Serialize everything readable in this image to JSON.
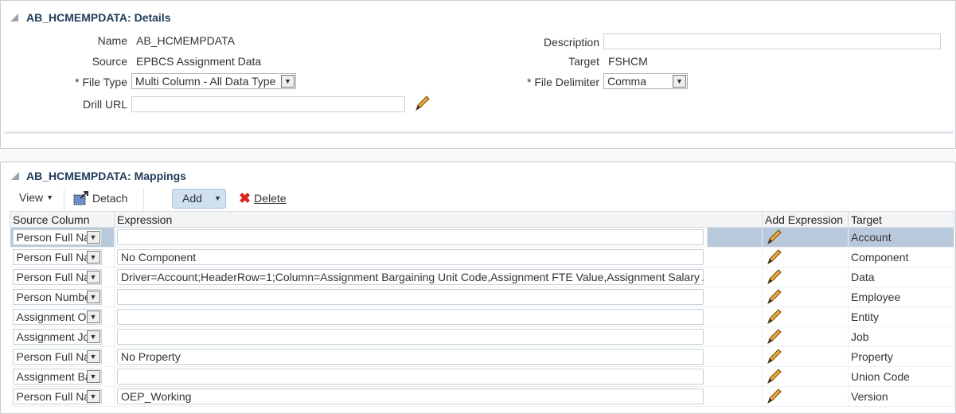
{
  "details": {
    "title": "AB_HCMEMPDATA: Details",
    "name_label": "Name",
    "name_value": "AB_HCMEMPDATA",
    "source_label": "Source",
    "source_value": "EPBCS Assignment Data",
    "filetype_label": "* File Type",
    "filetype_value": "Multi Column - All Data Type",
    "drillurl_label": "Drill URL",
    "drillurl_value": "",
    "description_label": "Description",
    "description_value": "",
    "target_label": "Target",
    "target_value": "FSHCM",
    "delimiter_label": "* File Delimiter",
    "delimiter_value": "Comma"
  },
  "mappings": {
    "title": "AB_HCMEMPDATA: Mappings",
    "toolbar": {
      "view": "View",
      "detach": "Detach",
      "add": "Add",
      "delete": "Delete"
    },
    "columns": [
      "Source Column",
      "Expression",
      "Add Expression",
      "Target"
    ],
    "rows": [
      {
        "source": "Person Full Na",
        "expression": "",
        "target": "Account"
      },
      {
        "source": "Person Full Na",
        "expression": "No Component",
        "target": "Component"
      },
      {
        "source": "Person Full Na",
        "expression": "Driver=Account;HeaderRow=1;Column=Assignment Bargaining Unit Code,Assignment FTE Value,Assignment Salary Am",
        "target": "Data"
      },
      {
        "source": "Person Numbe",
        "expression": "",
        "target": "Employee"
      },
      {
        "source": "Assignment O",
        "expression": "",
        "target": "Entity"
      },
      {
        "source": "Assignment Jo",
        "expression": "",
        "target": "Job"
      },
      {
        "source": "Person Full Na",
        "expression": "No Property",
        "target": "Property"
      },
      {
        "source": "Assignment Ba",
        "expression": "",
        "target": "Union Code"
      },
      {
        "source": "Person Full Na",
        "expression": "OEP_Working",
        "target": "Version"
      }
    ]
  },
  "colors": {
    "title": "#1f3c5a",
    "selected_row": "#b9c9dc",
    "add_button": "#cfe0f1",
    "delete_icon": "#d9261c"
  }
}
